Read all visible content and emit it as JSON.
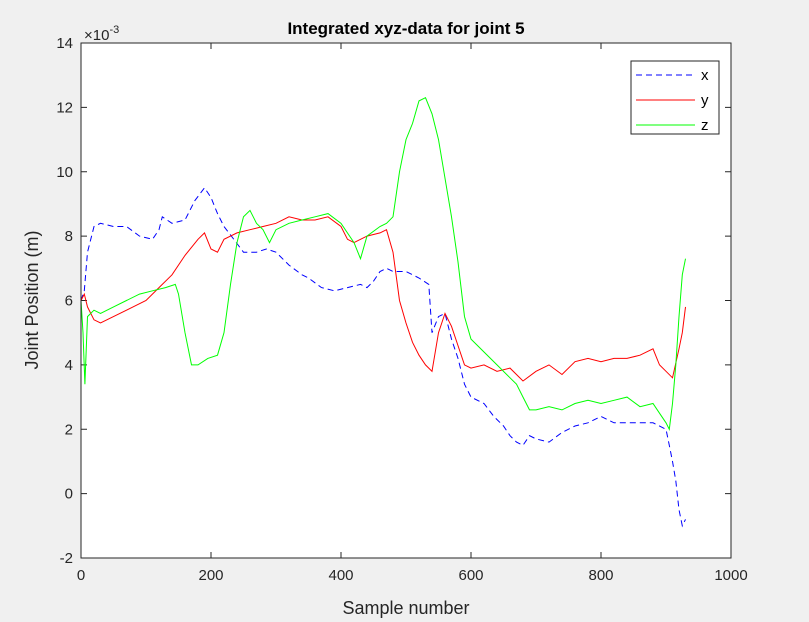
{
  "chart_data": {
    "type": "line",
    "title": "Integrated xyz-data for joint 5",
    "xlabel": "Sample number",
    "ylabel": "Joint Position (m)",
    "y_exponent_base": "×10",
    "y_exponent_power": "-3",
    "xlim": [
      0,
      1000
    ],
    "ylim": [
      -2,
      14
    ],
    "xticks": [
      0,
      200,
      400,
      600,
      800,
      1000
    ],
    "yticks": [
      -2,
      0,
      2,
      4,
      6,
      8,
      10,
      12,
      14
    ],
    "grid": false,
    "legend_position": "top-right",
    "series": [
      {
        "name": "x",
        "color": "#0000ff",
        "dash": "dashed",
        "points": [
          [
            0,
            6.0
          ],
          [
            5,
            6.3
          ],
          [
            10,
            7.5
          ],
          [
            20,
            8.3
          ],
          [
            30,
            8.4
          ],
          [
            50,
            8.3
          ],
          [
            70,
            8.3
          ],
          [
            90,
            8.0
          ],
          [
            110,
            7.9
          ],
          [
            120,
            8.2
          ],
          [
            125,
            8.6
          ],
          [
            140,
            8.4
          ],
          [
            160,
            8.5
          ],
          [
            175,
            9.1
          ],
          [
            190,
            9.5
          ],
          [
            200,
            9.2
          ],
          [
            210,
            8.7
          ],
          [
            220,
            8.3
          ],
          [
            235,
            7.9
          ],
          [
            250,
            7.5
          ],
          [
            270,
            7.5
          ],
          [
            285,
            7.6
          ],
          [
            300,
            7.5
          ],
          [
            320,
            7.1
          ],
          [
            340,
            6.8
          ],
          [
            350,
            6.7
          ],
          [
            370,
            6.4
          ],
          [
            390,
            6.3
          ],
          [
            410,
            6.4
          ],
          [
            430,
            6.5
          ],
          [
            440,
            6.4
          ],
          [
            450,
            6.6
          ],
          [
            460,
            6.9
          ],
          [
            470,
            7.0
          ],
          [
            480,
            6.9
          ],
          [
            500,
            6.9
          ],
          [
            520,
            6.7
          ],
          [
            535,
            6.5
          ],
          [
            540,
            5.0
          ],
          [
            550,
            5.5
          ],
          [
            560,
            5.6
          ],
          [
            570,
            4.8
          ],
          [
            580,
            4.2
          ],
          [
            590,
            3.4
          ],
          [
            600,
            3.0
          ],
          [
            620,
            2.8
          ],
          [
            635,
            2.4
          ],
          [
            650,
            2.1
          ],
          [
            660,
            1.8
          ],
          [
            670,
            1.6
          ],
          [
            680,
            1.5
          ],
          [
            690,
            1.8
          ],
          [
            700,
            1.7
          ],
          [
            720,
            1.6
          ],
          [
            740,
            1.9
          ],
          [
            760,
            2.1
          ],
          [
            780,
            2.2
          ],
          [
            800,
            2.4
          ],
          [
            820,
            2.2
          ],
          [
            840,
            2.2
          ],
          [
            860,
            2.2
          ],
          [
            880,
            2.2
          ],
          [
            900,
            2.0
          ],
          [
            905,
            1.5
          ],
          [
            910,
            1.0
          ],
          [
            915,
            0.4
          ],
          [
            920,
            -0.5
          ],
          [
            925,
            -1.0
          ],
          [
            930,
            -0.8
          ]
        ]
      },
      {
        "name": "y",
        "color": "#ff0000",
        "dash": "solid",
        "points": [
          [
            0,
            6.0
          ],
          [
            5,
            6.2
          ],
          [
            10,
            5.8
          ],
          [
            20,
            5.4
          ],
          [
            30,
            5.3
          ],
          [
            50,
            5.5
          ],
          [
            80,
            5.8
          ],
          [
            100,
            6.0
          ],
          [
            120,
            6.4
          ],
          [
            140,
            6.8
          ],
          [
            160,
            7.4
          ],
          [
            180,
            7.9
          ],
          [
            190,
            8.1
          ],
          [
            200,
            7.6
          ],
          [
            210,
            7.5
          ],
          [
            220,
            7.9
          ],
          [
            240,
            8.1
          ],
          [
            260,
            8.2
          ],
          [
            280,
            8.3
          ],
          [
            300,
            8.4
          ],
          [
            320,
            8.6
          ],
          [
            340,
            8.5
          ],
          [
            360,
            8.5
          ],
          [
            380,
            8.6
          ],
          [
            400,
            8.3
          ],
          [
            410,
            7.9
          ],
          [
            420,
            7.8
          ],
          [
            440,
            8.0
          ],
          [
            460,
            8.1
          ],
          [
            470,
            8.2
          ],
          [
            480,
            7.5
          ],
          [
            490,
            6.0
          ],
          [
            500,
            5.3
          ],
          [
            510,
            4.7
          ],
          [
            520,
            4.3
          ],
          [
            530,
            4.0
          ],
          [
            540,
            3.8
          ],
          [
            550,
            5.0
          ],
          [
            560,
            5.6
          ],
          [
            570,
            5.2
          ],
          [
            580,
            4.6
          ],
          [
            590,
            4.0
          ],
          [
            600,
            3.9
          ],
          [
            620,
            4.0
          ],
          [
            640,
            3.8
          ],
          [
            660,
            3.9
          ],
          [
            680,
            3.5
          ],
          [
            700,
            3.8
          ],
          [
            720,
            4.0
          ],
          [
            740,
            3.7
          ],
          [
            760,
            4.1
          ],
          [
            780,
            4.2
          ],
          [
            800,
            4.1
          ],
          [
            820,
            4.2
          ],
          [
            840,
            4.2
          ],
          [
            860,
            4.3
          ],
          [
            880,
            4.5
          ],
          [
            890,
            4.0
          ],
          [
            900,
            3.8
          ],
          [
            910,
            3.6
          ],
          [
            920,
            4.5
          ],
          [
            925,
            5.0
          ],
          [
            930,
            5.8
          ]
        ]
      },
      {
        "name": "z",
        "color": "#00ff00",
        "dash": "solid",
        "points": [
          [
            0,
            6.0
          ],
          [
            3,
            5.0
          ],
          [
            6,
            3.4
          ],
          [
            10,
            5.5
          ],
          [
            20,
            5.7
          ],
          [
            30,
            5.6
          ],
          [
            50,
            5.8
          ],
          [
            70,
            6.0
          ],
          [
            90,
            6.2
          ],
          [
            110,
            6.3
          ],
          [
            130,
            6.4
          ],
          [
            145,
            6.5
          ],
          [
            150,
            6.2
          ],
          [
            160,
            5.0
          ],
          [
            170,
            4.0
          ],
          [
            180,
            4.0
          ],
          [
            195,
            4.2
          ],
          [
            210,
            4.3
          ],
          [
            220,
            5.0
          ],
          [
            230,
            6.5
          ],
          [
            240,
            7.8
          ],
          [
            250,
            8.6
          ],
          [
            260,
            8.8
          ],
          [
            270,
            8.4
          ],
          [
            280,
            8.2
          ],
          [
            290,
            7.8
          ],
          [
            300,
            8.2
          ],
          [
            320,
            8.4
          ],
          [
            340,
            8.5
          ],
          [
            360,
            8.6
          ],
          [
            380,
            8.7
          ],
          [
            400,
            8.4
          ],
          [
            420,
            7.8
          ],
          [
            430,
            7.3
          ],
          [
            440,
            8.0
          ],
          [
            460,
            8.3
          ],
          [
            470,
            8.4
          ],
          [
            480,
            8.6
          ],
          [
            490,
            10.0
          ],
          [
            500,
            11.0
          ],
          [
            510,
            11.5
          ],
          [
            520,
            12.2
          ],
          [
            530,
            12.3
          ],
          [
            540,
            11.8
          ],
          [
            550,
            11.0
          ],
          [
            560,
            9.8
          ],
          [
            570,
            8.6
          ],
          [
            580,
            7.2
          ],
          [
            590,
            5.5
          ],
          [
            600,
            4.8
          ],
          [
            620,
            4.4
          ],
          [
            640,
            4.0
          ],
          [
            660,
            3.6
          ],
          [
            670,
            3.4
          ],
          [
            680,
            3.0
          ],
          [
            690,
            2.6
          ],
          [
            700,
            2.6
          ],
          [
            720,
            2.7
          ],
          [
            740,
            2.6
          ],
          [
            760,
            2.8
          ],
          [
            780,
            2.9
          ],
          [
            800,
            2.8
          ],
          [
            820,
            2.9
          ],
          [
            840,
            3.0
          ],
          [
            860,
            2.7
          ],
          [
            880,
            2.8
          ],
          [
            890,
            2.5
          ],
          [
            900,
            2.2
          ],
          [
            905,
            2.0
          ],
          [
            910,
            2.8
          ],
          [
            915,
            4.0
          ],
          [
            920,
            5.5
          ],
          [
            925,
            6.8
          ],
          [
            930,
            7.3
          ]
        ]
      }
    ]
  }
}
